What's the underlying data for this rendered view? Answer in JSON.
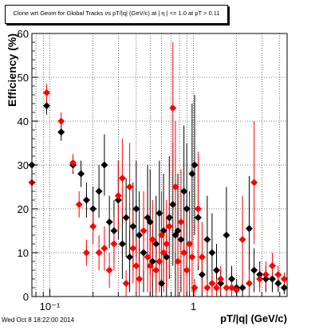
{
  "footer": {
    "timestamp": "Wed Oct  8 18:22:00 2014"
  },
  "chart_data": {
    "type": "scatter",
    "title": "Clone wrt Geom for Global Tracks vs pT/|q| (GeV/c) at |  η | <= 1.0 at pT > 0.11",
    "xlabel": "pT/|q| (GeV/c)",
    "ylabel": "Efficiency (%)",
    "xscale": "log",
    "xlim": [
      0.075,
      4.5
    ],
    "ylim": [
      0,
      60
    ],
    "x_ticks": [
      {
        "value": 0.1,
        "label": "10⁻¹"
      },
      {
        "value": 1,
        "label": "1"
      }
    ],
    "y_ticks": [
      0,
      10,
      20,
      30,
      40,
      50,
      60
    ],
    "grid": true,
    "series": [
      {
        "color": "#000000",
        "marker": "diamond",
        "points": [
          {
            "x": 0.075,
            "y": 30,
            "err": 3
          },
          {
            "x": 0.095,
            "y": 43.5,
            "err": 2
          },
          {
            "x": 0.12,
            "y": 37.5,
            "err": 2
          },
          {
            "x": 0.145,
            "y": 30,
            "err": 2
          },
          {
            "x": 0.165,
            "y": 28,
            "err": 3
          },
          {
            "x": 0.18,
            "y": 22,
            "err": 4
          },
          {
            "x": 0.2,
            "y": 20,
            "err": 5
          },
          {
            "x": 0.22,
            "y": 24,
            "err": 6
          },
          {
            "x": 0.24,
            "y": 30,
            "err": 7
          },
          {
            "x": 0.26,
            "y": 17,
            "err": 6
          },
          {
            "x": 0.28,
            "y": 15,
            "err": 7
          },
          {
            "x": 0.3,
            "y": 22,
            "err": 9
          },
          {
            "x": 0.32,
            "y": 12,
            "err": 8
          },
          {
            "x": 0.34,
            "y": 18,
            "err": 9
          },
          {
            "x": 0.36,
            "y": 9,
            "err": 8
          },
          {
            "x": 0.38,
            "y": 16,
            "err": 10
          },
          {
            "x": 0.4,
            "y": 20,
            "err": 11
          },
          {
            "x": 0.42,
            "y": 14,
            "err": 10
          },
          {
            "x": 0.45,
            "y": 10,
            "err": 9
          },
          {
            "x": 0.48,
            "y": 18,
            "err": 12
          },
          {
            "x": 0.5,
            "y": 17,
            "err": 12
          },
          {
            "x": 0.52,
            "y": 8,
            "err": 8
          },
          {
            "x": 0.55,
            "y": 12,
            "err": 11
          },
          {
            "x": 0.58,
            "y": 19,
            "err": 12
          },
          {
            "x": 0.6,
            "y": 3,
            "err": 3
          },
          {
            "x": 0.62,
            "y": 15,
            "err": 13
          },
          {
            "x": 0.65,
            "y": 9,
            "err": 9
          },
          {
            "x": 0.68,
            "y": 18,
            "err": 14
          },
          {
            "x": 0.72,
            "y": 21,
            "err": 14
          },
          {
            "x": 0.75,
            "y": 14,
            "err": 14
          },
          {
            "x": 0.78,
            "y": 15,
            "err": 13
          },
          {
            "x": 0.82,
            "y": 13,
            "err": 12
          },
          {
            "x": 0.86,
            "y": 24,
            "err": 15
          },
          {
            "x": 0.9,
            "y": 20,
            "err": 15
          },
          {
            "x": 0.94,
            "y": 12,
            "err": 12
          },
          {
            "x": 0.98,
            "y": 28,
            "err": 16
          },
          {
            "x": 1.02,
            "y": 30,
            "err": 16
          },
          {
            "x": 1.08,
            "y": 18,
            "err": 12
          },
          {
            "x": 1.15,
            "y": 5,
            "err": 5
          },
          {
            "x": 1.25,
            "y": 13,
            "err": 10
          },
          {
            "x": 1.35,
            "y": 10,
            "err": 9
          },
          {
            "x": 1.45,
            "y": 6,
            "err": 6
          },
          {
            "x": 1.55,
            "y": 3,
            "err": 3
          },
          {
            "x": 1.7,
            "y": 14,
            "err": 11
          },
          {
            "x": 1.85,
            "y": 4,
            "err": 3
          },
          {
            "x": 2.0,
            "y": 2,
            "err": 2
          },
          {
            "x": 2.2,
            "y": 2,
            "err": 2
          },
          {
            "x": 2.45,
            "y": 15.5,
            "err": 12
          },
          {
            "x": 2.65,
            "y": 6,
            "err": 5
          },
          {
            "x": 2.9,
            "y": 5,
            "err": 3
          },
          {
            "x": 3.2,
            "y": 4,
            "err": 3
          },
          {
            "x": 3.55,
            "y": 4,
            "err": 3
          },
          {
            "x": 3.9,
            "y": 3,
            "err": 2
          },
          {
            "x": 4.3,
            "y": 2,
            "err": 1.5
          }
        ]
      },
      {
        "color": "#ff0000",
        "marker": "diamond",
        "points": [
          {
            "x": 0.075,
            "y": 26,
            "err": 2
          },
          {
            "x": 0.095,
            "y": 46.5,
            "err": 2
          },
          {
            "x": 0.12,
            "y": 40,
            "err": 2
          },
          {
            "x": 0.145,
            "y": 30.5,
            "err": 2
          },
          {
            "x": 0.16,
            "y": 21,
            "err": 3
          },
          {
            "x": 0.18,
            "y": 10,
            "err": 3
          },
          {
            "x": 0.2,
            "y": 16,
            "err": 4
          },
          {
            "x": 0.22,
            "y": 10,
            "err": 4
          },
          {
            "x": 0.24,
            "y": 11,
            "err": 5
          },
          {
            "x": 0.26,
            "y": 6,
            "err": 4
          },
          {
            "x": 0.28,
            "y": 12,
            "err": 6
          },
          {
            "x": 0.3,
            "y": 23,
            "err": 8
          },
          {
            "x": 0.32,
            "y": 27,
            "err": 9
          },
          {
            "x": 0.34,
            "y": 3,
            "err": 3
          },
          {
            "x": 0.36,
            "y": 25,
            "err": 10
          },
          {
            "x": 0.38,
            "y": 11,
            "err": 8
          },
          {
            "x": 0.4,
            "y": 7,
            "err": 6
          },
          {
            "x": 0.42,
            "y": 4,
            "err": 4
          },
          {
            "x": 0.45,
            "y": 15,
            "err": 9
          },
          {
            "x": 0.48,
            "y": 9,
            "err": 8
          },
          {
            "x": 0.5,
            "y": 7,
            "err": 7
          },
          {
            "x": 0.52,
            "y": 13,
            "err": 9
          },
          {
            "x": 0.55,
            "y": 6,
            "err": 6
          },
          {
            "x": 0.58,
            "y": 8,
            "err": 7
          },
          {
            "x": 0.6,
            "y": 14,
            "err": 10
          },
          {
            "x": 0.62,
            "y": 10,
            "err": 9
          },
          {
            "x": 0.65,
            "y": 12,
            "err": 10
          },
          {
            "x": 0.68,
            "y": 16,
            "err": 11
          },
          {
            "x": 0.72,
            "y": 43,
            "err": 15
          },
          {
            "x": 0.75,
            "y": 25,
            "err": 15
          },
          {
            "x": 0.78,
            "y": 8,
            "err": 8
          },
          {
            "x": 0.82,
            "y": 17,
            "err": 12
          },
          {
            "x": 0.86,
            "y": 10,
            "err": 10
          },
          {
            "x": 0.9,
            "y": 6,
            "err": 6
          },
          {
            "x": 0.94,
            "y": 12,
            "err": 11
          },
          {
            "x": 0.98,
            "y": 9,
            "err": 8
          },
          {
            "x": 1.02,
            "y": 2,
            "err": 2
          },
          {
            "x": 1.08,
            "y": 20,
            "err": 13
          },
          {
            "x": 1.15,
            "y": 9,
            "err": 8
          },
          {
            "x": 1.25,
            "y": 2,
            "err": 2
          },
          {
            "x": 1.35,
            "y": 3,
            "err": 3
          },
          {
            "x": 1.45,
            "y": 2,
            "err": 2
          },
          {
            "x": 1.55,
            "y": 4,
            "err": 3
          },
          {
            "x": 1.7,
            "y": 2,
            "err": 2
          },
          {
            "x": 1.85,
            "y": 2,
            "err": 2
          },
          {
            "x": 2.0,
            "y": 1.5,
            "err": 1.5
          },
          {
            "x": 2.2,
            "y": 13,
            "err": 10
          },
          {
            "x": 2.45,
            "y": 3,
            "err": 3
          },
          {
            "x": 2.65,
            "y": 26,
            "err": 14
          },
          {
            "x": 2.9,
            "y": 4,
            "err": 3
          },
          {
            "x": 3.2,
            "y": 5,
            "err": 3
          },
          {
            "x": 3.55,
            "y": 7,
            "err": 3
          },
          {
            "x": 3.9,
            "y": 5,
            "err": 2
          },
          {
            "x": 4.3,
            "y": 4,
            "err": 1.5
          }
        ]
      }
    ]
  }
}
